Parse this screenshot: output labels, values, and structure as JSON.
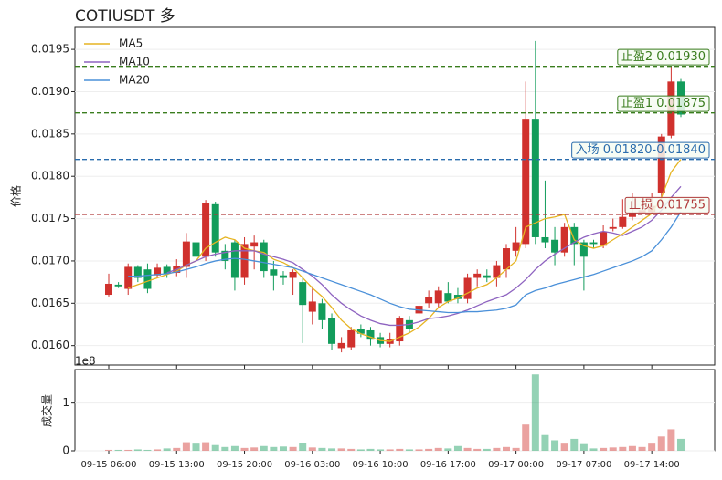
{
  "chart_data": [
    {
      "type": "candlestick",
      "title": "COTIUSDT  多",
      "ylabel": "价格",
      "up_color": "#d0312d",
      "down_color": "#129c5b",
      "grid": true,
      "legend": "upper left",
      "categories": [
        "09-15 06:00",
        null,
        null,
        null,
        null,
        null,
        null,
        "09-15 13:00",
        null,
        null,
        null,
        null,
        null,
        null,
        "09-15 20:00",
        null,
        null,
        null,
        null,
        null,
        null,
        "09-16 03:00",
        null,
        null,
        null,
        null,
        null,
        null,
        "09-16 10:00",
        null,
        null,
        null,
        null,
        null,
        null,
        "09-16 17:00",
        null,
        null,
        null,
        null,
        null,
        null,
        "09-17 00:00",
        null,
        null,
        null,
        null,
        null,
        null,
        "09-17 07:00",
        null,
        null,
        null,
        null,
        null,
        null,
        "09-17 14:00",
        null,
        null,
        null
      ],
      "open": [
        0.0166,
        0.01672,
        0.01667,
        0.01693,
        0.0169,
        0.01683,
        0.01693,
        0.01686,
        0.01693,
        0.01722,
        0.01705,
        0.01767,
        0.01712,
        0.01722,
        0.0168,
        0.01717,
        0.01722,
        0.0169,
        0.01683,
        0.0168,
        0.01675,
        0.0164,
        0.0165,
        0.01632,
        0.01597,
        0.01598,
        0.0162,
        0.01618,
        0.0161,
        0.01602,
        0.01605,
        0.0163,
        0.01638,
        0.0165,
        0.0165,
        0.01662,
        0.0166,
        0.01655,
        0.0168,
        0.01683,
        0.0168,
        0.0169,
        0.01712,
        0.0172,
        0.01868,
        0.01728,
        0.01725,
        0.0171,
        0.0174,
        0.01722,
        0.01722,
        0.01718,
        0.01738,
        0.0174,
        0.01752,
        0.01757,
        0.01758,
        0.0178,
        0.01848,
        0.01912
      ],
      "high": [
        0.01685,
        0.01675,
        0.01697,
        0.01695,
        0.01697,
        0.01697,
        0.01696,
        0.01702,
        0.01733,
        0.01725,
        0.01772,
        0.0177,
        0.0172,
        0.01725,
        0.01728,
        0.0173,
        0.01725,
        0.017,
        0.01688,
        0.0169,
        0.0168,
        0.0167,
        0.01655,
        0.01638,
        0.0161,
        0.01622,
        0.01625,
        0.01622,
        0.01615,
        0.01615,
        0.01635,
        0.01635,
        0.0165,
        0.01665,
        0.0167,
        0.01675,
        0.01668,
        0.01685,
        0.0169,
        0.0169,
        0.017,
        0.0172,
        0.0174,
        0.01912,
        0.0196,
        0.01795,
        0.0174,
        0.01745,
        0.01745,
        0.01725,
        0.01725,
        0.01742,
        0.0175,
        0.01773,
        0.0178,
        0.01765,
        0.0178,
        0.0185,
        0.0193,
        0.01915
      ],
      "low": [
        0.01658,
        0.01668,
        0.0166,
        0.01675,
        0.01662,
        0.0168,
        0.0168,
        0.01682,
        0.0168,
        0.0169,
        0.017,
        0.01705,
        0.0169,
        0.01665,
        0.01672,
        0.0169,
        0.0168,
        0.01665,
        0.01672,
        0.0166,
        0.01603,
        0.01625,
        0.0162,
        0.01595,
        0.01592,
        0.01595,
        0.0161,
        0.016,
        0.01598,
        0.01598,
        0.016,
        0.01615,
        0.01635,
        0.01645,
        0.01645,
        0.0165,
        0.0165,
        0.0165,
        0.0167,
        0.01675,
        0.0167,
        0.0168,
        0.01705,
        0.01715,
        0.0172,
        0.01715,
        0.01695,
        0.01705,
        0.01695,
        0.01665,
        0.01715,
        0.01715,
        0.01735,
        0.01738,
        0.01748,
        0.0175,
        0.01755,
        0.0177,
        0.01845,
        0.0187
      ],
      "close": [
        0.01673,
        0.0167,
        0.01693,
        0.0168,
        0.01667,
        0.01692,
        0.01685,
        0.01694,
        0.01723,
        0.01705,
        0.01768,
        0.0171,
        0.017,
        0.0168,
        0.0172,
        0.01722,
        0.01688,
        0.01683,
        0.0168,
        0.01687,
        0.01648,
        0.01652,
        0.0163,
        0.01602,
        0.01603,
        0.01618,
        0.01614,
        0.01607,
        0.01602,
        0.01608,
        0.01632,
        0.0162,
        0.01647,
        0.01657,
        0.01665,
        0.01652,
        0.01655,
        0.0168,
        0.01685,
        0.0168,
        0.01695,
        0.01715,
        0.01722,
        0.01868,
        0.01728,
        0.01722,
        0.0171,
        0.0174,
        0.0172,
        0.01705,
        0.0172,
        0.01735,
        0.0174,
        0.01752,
        0.01757,
        0.0176,
        0.01765,
        0.01847,
        0.01912,
        0.01873
      ],
      "series": [
        {
          "name": "MA5",
          "color": "#e6b422",
          "values": [
            null,
            null,
            0.01668,
            0.01672,
            0.01676,
            0.0168,
            0.01684,
            0.01688,
            0.01695,
            0.017,
            0.01715,
            0.01722,
            0.01728,
            0.01725,
            0.01715,
            0.01712,
            0.0171,
            0.01702,
            0.01698,
            0.01692,
            0.0168,
            0.01668,
            0.01658,
            0.01645,
            0.0163,
            0.0162,
            0.01614,
            0.0161,
            0.01606,
            0.01605,
            0.0161,
            0.01615,
            0.01622,
            0.01632,
            0.01645,
            0.01652,
            0.01656,
            0.01662,
            0.01668,
            0.01672,
            0.0168,
            0.0169,
            0.017,
            0.0174,
            0.01745,
            0.0175,
            0.01752,
            0.01755,
            0.01725,
            0.01718,
            0.01715,
            0.01718,
            0.01725,
            0.01732,
            0.0174,
            0.01748,
            0.01756,
            0.01775,
            0.01805,
            0.0182
          ]
        },
        {
          "name": "MA10",
          "color": "#8e63c0",
          "values": [
            null,
            null,
            null,
            null,
            null,
            null,
            0.01686,
            0.0169,
            0.01695,
            0.017,
            0.01705,
            0.01708,
            0.0171,
            0.01712,
            0.01712,
            0.01712,
            0.01708,
            0.01705,
            0.01702,
            0.01698,
            0.0169,
            0.01682,
            0.01672,
            0.0166,
            0.0165,
            0.01642,
            0.01635,
            0.0163,
            0.01626,
            0.01624,
            0.01624,
            0.01625,
            0.01628,
            0.01632,
            0.01633,
            0.01635,
            0.01638,
            0.01642,
            0.01647,
            0.01652,
            0.01656,
            0.0166,
            0.01668,
            0.01678,
            0.0169,
            0.017,
            0.01708,
            0.01715,
            0.01722,
            0.01728,
            0.01732,
            0.01735,
            0.01733,
            0.0173,
            0.01735,
            0.0174,
            0.01748,
            0.0176,
            0.01775,
            0.01788
          ]
        },
        {
          "name": "MA20",
          "color": "#4a90d9",
          "values": [
            null,
            null,
            0.01682,
            0.01682,
            0.01683,
            0.01684,
            0.01685,
            0.01687,
            0.0169,
            0.01693,
            0.01697,
            0.017,
            0.01702,
            0.01703,
            0.01702,
            0.017,
            0.01698,
            0.01696,
            0.01694,
            0.01692,
            0.01688,
            0.01684,
            0.0168,
            0.01676,
            0.01672,
            0.01668,
            0.01664,
            0.0166,
            0.01655,
            0.0165,
            0.01646,
            0.01643,
            0.01642,
            0.01641,
            0.0164,
            0.01639,
            0.01639,
            0.0164,
            0.0164,
            0.01641,
            0.01642,
            0.01644,
            0.01648,
            0.0166,
            0.01665,
            0.01668,
            0.01672,
            0.01675,
            0.01678,
            0.01681,
            0.01684,
            0.01688,
            0.01692,
            0.01696,
            0.017,
            0.01705,
            0.01712,
            0.01725,
            0.0174,
            0.01758
          ]
        }
      ],
      "levels": [
        {
          "label": "止盈2 0.01930",
          "value": 0.0193,
          "color": "#3a7d1e"
        },
        {
          "label": "止盈1 0.01875",
          "value": 0.01875,
          "color": "#3a7d1e"
        },
        {
          "label": "入场 0.01820-0.01840",
          "value": 0.0182,
          "color": "#2a6cad"
        },
        {
          "label": "止损 0.01755",
          "value": 0.01755,
          "color": "#b03a3a"
        }
      ],
      "ylim": [
        0.01577,
        0.01976
      ],
      "yticks": [
        {
          "value": 0.016,
          "label": "0.0160"
        },
        {
          "value": 0.0165,
          "label": "0.0165"
        },
        {
          "value": 0.017,
          "label": "0.0170"
        },
        {
          "value": 0.0175,
          "label": "0.0175"
        },
        {
          "value": 0.018,
          "label": "0.0180"
        },
        {
          "value": 0.0185,
          "label": "0.0185"
        },
        {
          "value": 0.019,
          "label": "0.0190"
        },
        {
          "value": 0.0195,
          "label": "0.0195"
        }
      ]
    },
    {
      "type": "bar",
      "ylabel": "成交量",
      "offset_label": "1e8",
      "grid": true,
      "values": [
        0.02,
        0.02,
        0.02,
        0.03,
        0.02,
        0.03,
        0.05,
        0.06,
        0.18,
        0.15,
        0.18,
        0.12,
        0.08,
        0.1,
        0.06,
        0.07,
        0.1,
        0.08,
        0.09,
        0.08,
        0.17,
        0.07,
        0.06,
        0.05,
        0.05,
        0.04,
        0.03,
        0.04,
        0.03,
        0.03,
        0.04,
        0.03,
        0.03,
        0.04,
        0.06,
        0.05,
        0.1,
        0.06,
        0.04,
        0.04,
        0.06,
        0.08,
        0.06,
        0.55,
        1.6,
        0.33,
        0.22,
        0.15,
        0.25,
        0.14,
        0.05,
        0.06,
        0.07,
        0.08,
        0.1,
        0.08,
        0.15,
        0.3,
        0.45,
        0.25
      ],
      "ylim": [
        0,
        1.7
      ],
      "yticks": [
        0,
        1
      ]
    }
  ]
}
